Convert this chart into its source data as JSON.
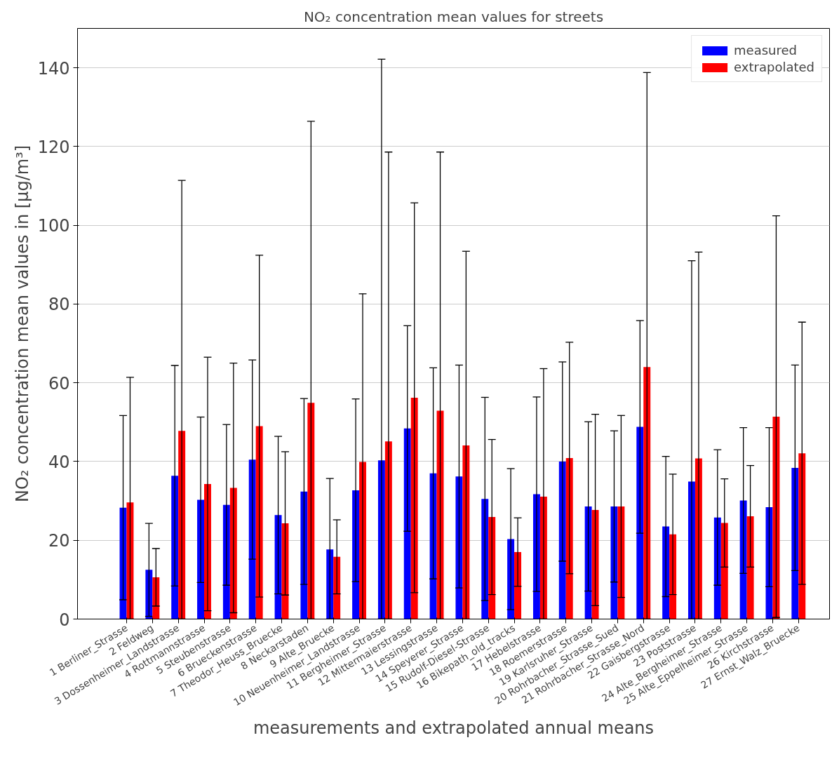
{
  "chart_data": {
    "type": "bar",
    "title": "NO₂ concentration mean values for streets",
    "xlabel": "measurements and extrapolated annual means",
    "ylabel": "NO₂ concentration mean values in [μg/m³]",
    "categories": [
      "1 Berliner_Strasse",
      "2 Feldweg",
      "3 Dossenheimer_Landstrasse",
      "4 Rottmannstrasse",
      "5 Steubenstrasse",
      "6 Brueckenstrasse",
      "7 Theodor_Heuss_Bruecke",
      "8 Neckarstaden",
      "9 Alte_Bruecke",
      "10 Neuenheimer_Landstrasse",
      "11 Bergheimer_Strasse",
      "12 Mittermaierstrasse",
      "13 Lessingstrasse",
      "14 Speyerer_Strasse",
      "15 Rudolf-Diesel-Strasse",
      "16 Bikepath_old_tracks",
      "17 Hebelstrasse",
      "18 Roemerstrasse",
      "19 Karlsruher_Strasse",
      "20 Rohrbacher_Strasse_Sued",
      "21 Rohrbacher_Strasse_Nord",
      "22 Gaisbergstrasse",
      "23 Poststrasse",
      "24 Alte_Bergheimer_Strasse",
      "25 Alte_Eppelheimer_Strasse",
      "26 Kirchstrasse",
      "27 Ernst_Walz_Bruecke"
    ],
    "series": [
      {
        "name": "measured",
        "color": "#0000ff",
        "values": [
          28.3,
          12.5,
          36.4,
          30.3,
          29.0,
          40.5,
          26.4,
          32.4,
          17.7,
          32.7,
          40.3,
          48.4,
          37.0,
          36.2,
          30.5,
          20.3,
          31.7,
          40.0,
          28.6,
          28.6,
          48.8,
          23.5,
          34.9,
          25.8,
          30.1,
          28.4,
          38.4
        ],
        "errors": [
          23.4,
          11.8,
          28,
          21,
          20.4,
          25.3,
          20,
          23.6,
          [
            0,
            35.7
          ],
          23.2,
          [
            0,
            142.2
          ],
          26.1,
          26.8,
          28.3,
          25.8,
          17.9,
          24.7,
          25.3,
          21.5,
          19.2,
          27,
          17.8,
          [
            0,
            91.0
          ],
          17.2,
          18.5,
          20.2,
          26.1
        ]
      },
      {
        "name": "extrapolated",
        "color": "#ff0000",
        "values": [
          29.6,
          10.6,
          47.8,
          34.3,
          33.3,
          49.0,
          24.3,
          54.9,
          15.8,
          39.9,
          45.1,
          56.2,
          52.9,
          44.1,
          25.9,
          17.0,
          31.1,
          40.9,
          27.7,
          28.6,
          64.0,
          21.5,
          40.8,
          24.4,
          26.1,
          51.4,
          42.1
        ],
        "errors": [
          [
            0,
            61.4
          ],
          7.3,
          [
            0,
            111.4
          ],
          32.2,
          31.7,
          43.4,
          18.2,
          [
            0,
            126.4
          ],
          9.4,
          [
            0,
            82.6
          ],
          [
            0,
            118.6
          ],
          49.5,
          [
            0,
            118.6
          ],
          [
            0,
            93.4
          ],
          19.7,
          8.7,
          [
            0,
            63.6
          ],
          29.4,
          24.3,
          23.1,
          [
            0,
            138.8
          ],
          15.3,
          [
            0,
            93.2
          ],
          11.2,
          12.9,
          51,
          33.3
        ]
      }
    ],
    "ylim": [
      0,
      150
    ],
    "yticks": [
      0,
      20,
      40,
      60,
      80,
      100,
      120,
      140
    ],
    "grid": "y",
    "legend": "top right"
  }
}
